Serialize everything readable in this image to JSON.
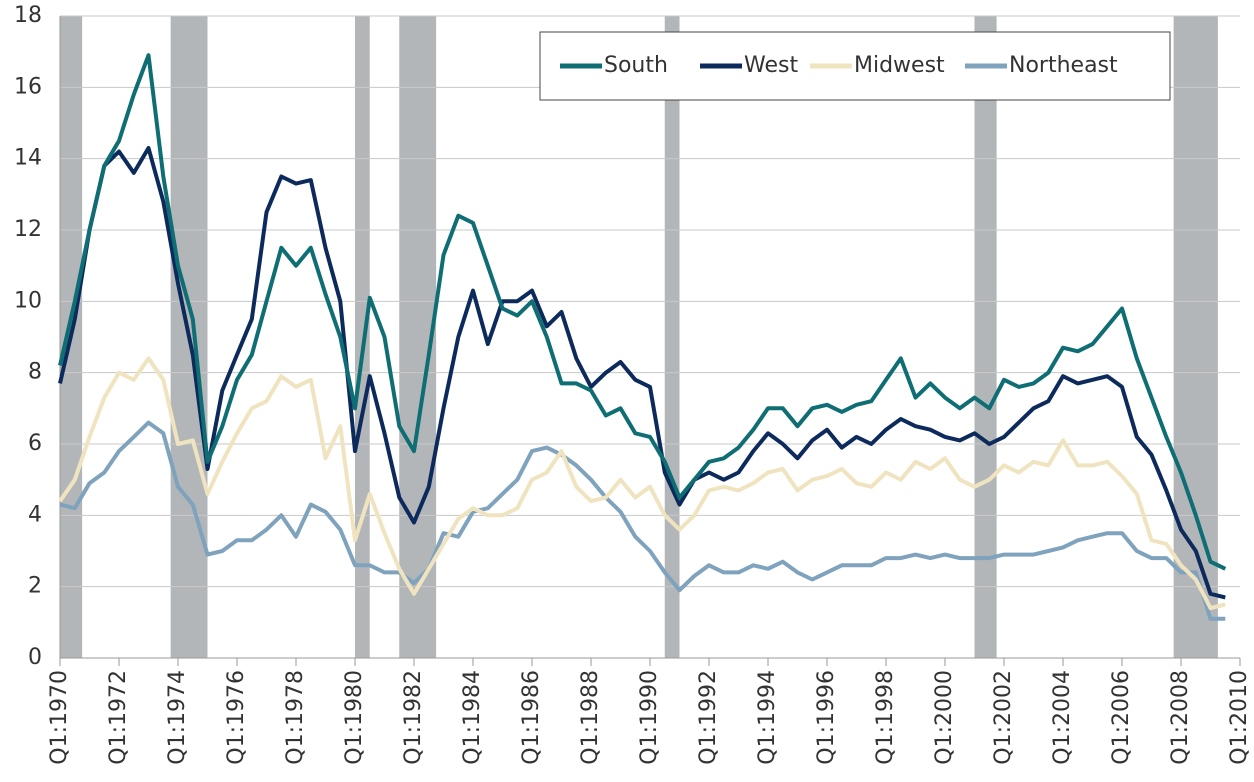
{
  "chart_data": {
    "type": "line",
    "x": [
      1970,
      1970.5,
      1971,
      1971.5,
      1972,
      1972.5,
      1973,
      1973.5,
      1974,
      1974.5,
      1975,
      1975.5,
      1976,
      1976.5,
      1977,
      1977.5,
      1978,
      1978.5,
      1979,
      1979.5,
      1980,
      1980.5,
      1981,
      1981.5,
      1982,
      1982.5,
      1983,
      1983.5,
      1984,
      1984.5,
      1985,
      1985.5,
      1986,
      1986.5,
      1987,
      1987.5,
      1988,
      1988.5,
      1989,
      1989.5,
      1990,
      1990.5,
      1991,
      1991.5,
      1992,
      1992.5,
      1993,
      1993.5,
      1994,
      1994.5,
      1995,
      1995.5,
      1996,
      1996.5,
      1997,
      1997.5,
      1998,
      1998.5,
      1999,
      1999.5,
      2000,
      2000.5,
      2001,
      2001.5,
      2002,
      2002.5,
      2003,
      2003.5,
      2004,
      2004.5,
      2005,
      2005.5,
      2006,
      2006.5,
      2007,
      2007.5,
      2008,
      2008.5,
      2009,
      2009.5
    ],
    "series": [
      {
        "name": "South",
        "color": "#0f6e74",
        "values": [
          8.2,
          10,
          12,
          13.8,
          14.5,
          15.8,
          16.9,
          13.5,
          11,
          9.5,
          5.5,
          6.5,
          7.8,
          8.5,
          10,
          11.5,
          11,
          11.5,
          10.2,
          9.0,
          7,
          10.1,
          9,
          6.5,
          5.8,
          8.5,
          11.3,
          12.4,
          12.2,
          11,
          9.8,
          9.6,
          10,
          9,
          7.7,
          7.7,
          7.5,
          6.8,
          7.0,
          6.3,
          6.2,
          5.5,
          4.5,
          5.0,
          5.5,
          5.6,
          5.9,
          6.4,
          7.0,
          7.0,
          6.5,
          7.0,
          7.1,
          6.9,
          7.1,
          7.2,
          7.8,
          8.4,
          7.3,
          7.7,
          7.3,
          7.0,
          7.3,
          7.0,
          7.8,
          7.6,
          7.7,
          8.0,
          8.7,
          8.6,
          8.8,
          9.3,
          9.8,
          8.4,
          7.3,
          6.2,
          5.2,
          4.0,
          2.7,
          2.5
        ]
      },
      {
        "name": "West",
        "color": "#0d2a5c",
        "values": [
          7.7,
          9.5,
          12,
          13.8,
          14.2,
          13.6,
          14.3,
          12.8,
          10.5,
          8.5,
          5.3,
          7.5,
          8.5,
          9.5,
          12.5,
          13.5,
          13.3,
          13.4,
          11.5,
          10.0,
          5.8,
          7.9,
          6.3,
          4.5,
          3.8,
          4.8,
          7.0,
          9.0,
          10.3,
          8.8,
          10,
          10,
          10.3,
          9.3,
          9.7,
          8.4,
          7.6,
          8.0,
          8.3,
          7.8,
          7.6,
          5.2,
          4.3,
          5.0,
          5.2,
          5.0,
          5.2,
          5.8,
          6.3,
          6.0,
          5.6,
          6.1,
          6.4,
          5.9,
          6.2,
          6.0,
          6.4,
          6.7,
          6.5,
          6.4,
          6.2,
          6.1,
          6.3,
          6.0,
          6.2,
          6.6,
          7.0,
          7.2,
          7.9,
          7.7,
          7.8,
          7.9,
          7.6,
          6.2,
          5.7,
          4.7,
          3.6,
          3.0,
          1.8,
          1.7
        ]
      },
      {
        "name": "Midwest",
        "color": "#efe4bf",
        "values": [
          4.4,
          5.0,
          6.2,
          7.3,
          8.0,
          7.8,
          8.4,
          7.8,
          6.0,
          6.1,
          4.6,
          5.5,
          6.3,
          7.0,
          7.2,
          7.9,
          7.6,
          7.8,
          5.6,
          6.5,
          3.3,
          4.6,
          3.5,
          2.5,
          1.8,
          2.5,
          3.2,
          3.9,
          4.2,
          4.0,
          4.0,
          4.2,
          5.0,
          5.2,
          5.8,
          4.8,
          4.4,
          4.5,
          5.0,
          4.5,
          4.8,
          4.0,
          3.6,
          4.0,
          4.7,
          4.8,
          4.7,
          4.9,
          5.2,
          5.3,
          4.7,
          5.0,
          5.1,
          5.3,
          4.9,
          4.8,
          5.2,
          5.0,
          5.5,
          5.3,
          5.6,
          5.0,
          4.8,
          5.0,
          5.4,
          5.2,
          5.5,
          5.4,
          6.1,
          5.4,
          5.4,
          5.5,
          5.1,
          4.6,
          3.3,
          3.2,
          2.6,
          2.2,
          1.4,
          1.5
        ]
      },
      {
        "name": "Northeast",
        "color": "#7fa2bd",
        "values": [
          4.3,
          4.2,
          4.9,
          5.2,
          5.8,
          6.2,
          6.6,
          6.3,
          4.8,
          4.3,
          2.9,
          3.0,
          3.3,
          3.3,
          3.6,
          4.0,
          3.4,
          4.3,
          4.1,
          3.6,
          2.6,
          2.6,
          2.4,
          2.4,
          2.1,
          2.5,
          3.5,
          3.4,
          4.1,
          4.2,
          4.6,
          5.0,
          5.8,
          5.9,
          5.7,
          5.4,
          5.0,
          4.5,
          4.1,
          3.4,
          3.0,
          2.4,
          1.9,
          2.3,
          2.6,
          2.4,
          2.4,
          2.6,
          2.5,
          2.7,
          2.4,
          2.2,
          2.4,
          2.6,
          2.6,
          2.6,
          2.8,
          2.8,
          2.9,
          2.8,
          2.9,
          2.8,
          2.8,
          2.8,
          2.9,
          2.9,
          2.9,
          3.0,
          3.1,
          3.3,
          3.4,
          3.5,
          3.5,
          3.0,
          2.8,
          2.8,
          2.4,
          2.4,
          1.1,
          1.1
        ]
      }
    ],
    "recessions": [
      [
        1970,
        1970.75
      ],
      [
        1973.75,
        1975
      ],
      [
        1980,
        1980.5
      ],
      [
        1981.5,
        1982.75
      ],
      [
        1990.5,
        1991
      ],
      [
        2001,
        2001.75
      ],
      [
        2007.75,
        2009.25
      ]
    ],
    "recession_color": "#b3b6b9",
    "xlim": [
      1970,
      2010
    ],
    "xticks": [
      {
        "value": 1970,
        "label": "Q1:1970"
      },
      {
        "value": 1972,
        "label": "Q1:1972"
      },
      {
        "value": 1974,
        "label": "Q1:1974"
      },
      {
        "value": 1976,
        "label": "Q1:1976"
      },
      {
        "value": 1978,
        "label": "Q1:1978"
      },
      {
        "value": 1980,
        "label": "Q1:1980"
      },
      {
        "value": 1982,
        "label": "Q1:1982"
      },
      {
        "value": 1984,
        "label": "Q1:1984"
      },
      {
        "value": 1986,
        "label": "Q1:1986"
      },
      {
        "value": 1988,
        "label": "Q1:1988"
      },
      {
        "value": 1990,
        "label": "Q1:1990"
      },
      {
        "value": 1992,
        "label": "Q1:1992"
      },
      {
        "value": 1994,
        "label": "Q1:1994"
      },
      {
        "value": 1996,
        "label": "Q1:1996"
      },
      {
        "value": 1998,
        "label": "Q1:1998"
      },
      {
        "value": 2000,
        "label": "Q1:2000"
      },
      {
        "value": 2002,
        "label": "Q1:2002"
      },
      {
        "value": 2004,
        "label": "Q1:2004"
      },
      {
        "value": 2006,
        "label": "Q1:2006"
      },
      {
        "value": 2008,
        "label": "Q1:2008"
      },
      {
        "value": 2010,
        "label": "Q1:2010"
      }
    ],
    "ylim": [
      0,
      18
    ],
    "yticks": [
      0,
      2,
      4,
      6,
      8,
      10,
      12,
      14,
      16,
      18
    ],
    "grid": true,
    "legend": "top-right"
  }
}
